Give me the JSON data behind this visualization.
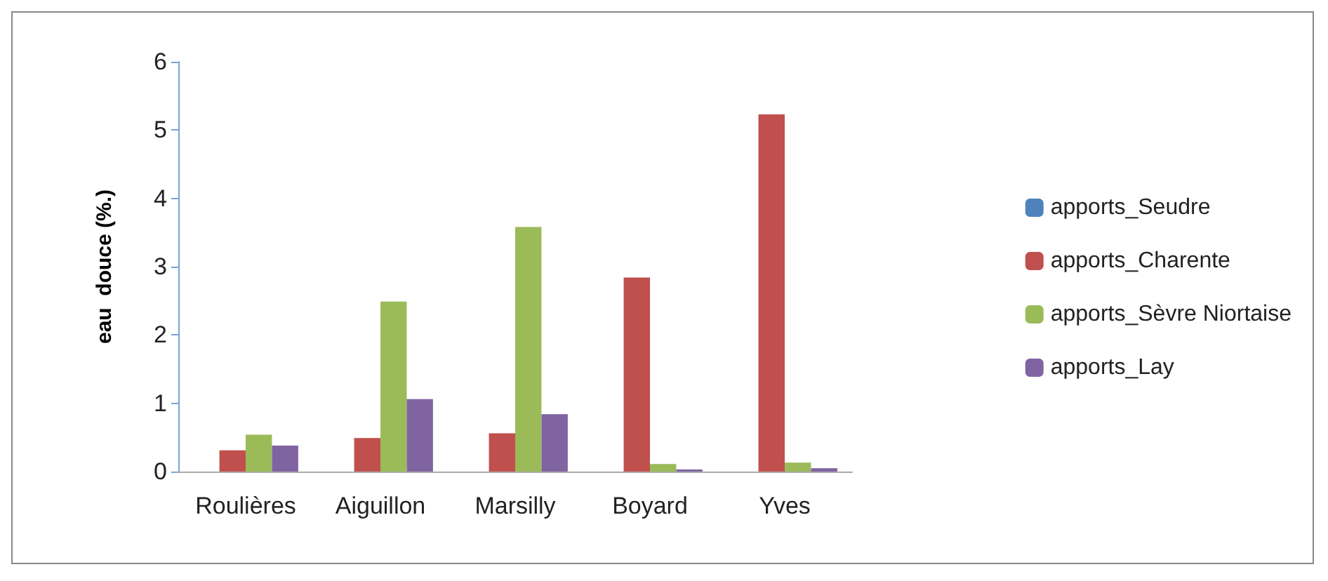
{
  "chart_data": {
    "type": "bar",
    "ylabel": "eau  douce (%.)",
    "categories": [
      "Roulières",
      "Aiguillon",
      "Marsilly",
      "Boyard",
      "Yves"
    ],
    "series": [
      {
        "name": "apports_Seudre",
        "color": "#4f81bd",
        "values": [
          0,
          0,
          0,
          0,
          0
        ]
      },
      {
        "name": "apports_Charente",
        "color": "#c0504d",
        "values": [
          0.31,
          0.49,
          0.56,
          2.84,
          5.23
        ]
      },
      {
        "name": "apports_Sèvre Niortaise",
        "color": "#9bbb59",
        "values": [
          0.54,
          2.49,
          3.58,
          0.11,
          0.13
        ]
      },
      {
        "name": "apports_Lay",
        "color": "#8064a2",
        "values": [
          0.38,
          1.06,
          0.84,
          0.03,
          0.05
        ]
      }
    ],
    "ylim": [
      0,
      6
    ],
    "yticks": [
      0,
      1,
      2,
      3,
      4,
      5,
      6
    ],
    "grid": false,
    "legend": "right"
  }
}
